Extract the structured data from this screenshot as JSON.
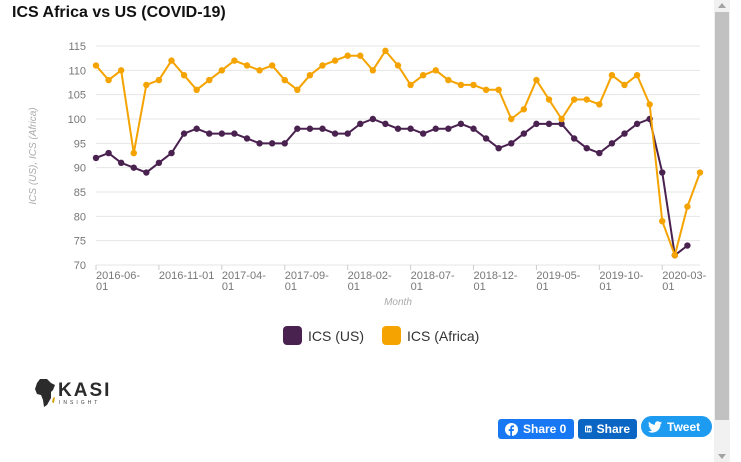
{
  "chart_data": {
    "type": "line",
    "title": "ICS Africa vs US (COVID-19)",
    "xlabel": "Month",
    "ylabel": "ICS (US), ICS (Africa)",
    "ylim": [
      70,
      115
    ],
    "yticks": [
      70,
      75,
      80,
      85,
      90,
      95,
      100,
      105,
      110,
      115
    ],
    "xtick_labels": [
      {
        "index": 0,
        "line1": "2016-06-",
        "line2": "01"
      },
      {
        "index": 5,
        "line1": "2016-11-01",
        "line2": ""
      },
      {
        "index": 10,
        "line1": "2017-04-",
        "line2": "01"
      },
      {
        "index": 15,
        "line1": "2017-09-",
        "line2": "01"
      },
      {
        "index": 20,
        "line1": "2018-02-",
        "line2": "01"
      },
      {
        "index": 25,
        "line1": "2018-07-",
        "line2": "01"
      },
      {
        "index": 30,
        "line1": "2018-12-",
        "line2": "01"
      },
      {
        "index": 35,
        "line1": "2019-05-",
        "line2": "01"
      },
      {
        "index": 40,
        "line1": "2019-10-",
        "line2": "01"
      },
      {
        "index": 45,
        "line1": "2020-03-",
        "line2": "01"
      }
    ],
    "series": [
      {
        "name": "ICS (US)",
        "color": "#4a2250",
        "values": [
          92,
          93,
          91,
          90,
          89,
          91,
          93,
          97,
          98,
          97,
          97,
          97,
          96,
          95,
          95,
          95,
          98,
          98,
          98,
          97,
          97,
          99,
          100,
          99,
          98,
          98,
          97,
          98,
          98,
          99,
          98,
          96,
          94,
          95,
          97,
          99,
          99,
          99,
          96,
          94,
          93,
          95,
          97,
          99,
          100,
          89,
          72,
          74,
          null
        ]
      },
      {
        "name": "ICS (Africa)",
        "color": "#f5a300",
        "values": [
          111,
          108,
          110,
          93,
          107,
          108,
          112,
          109,
          106,
          108,
          110,
          112,
          111,
          110,
          111,
          108,
          106,
          109,
          111,
          112,
          113,
          113,
          110,
          114,
          111,
          107,
          109,
          110,
          108,
          107,
          107,
          106,
          106,
          100,
          102,
          108,
          104,
          100,
          104,
          104,
          103,
          109,
          107,
          109,
          103,
          79,
          72,
          82,
          89
        ]
      }
    ]
  },
  "legend": {
    "us_label": "ICS (US)",
    "africa_label": "ICS (Africa)",
    "us_color": "#4a2250",
    "africa_color": "#f5a300"
  },
  "logo": {
    "name": "KASI",
    "tagline": "INSIGHT"
  },
  "share": {
    "facebook_label": "Share 0",
    "linkedin_label": "Share",
    "twitter_label": "Tweet"
  }
}
